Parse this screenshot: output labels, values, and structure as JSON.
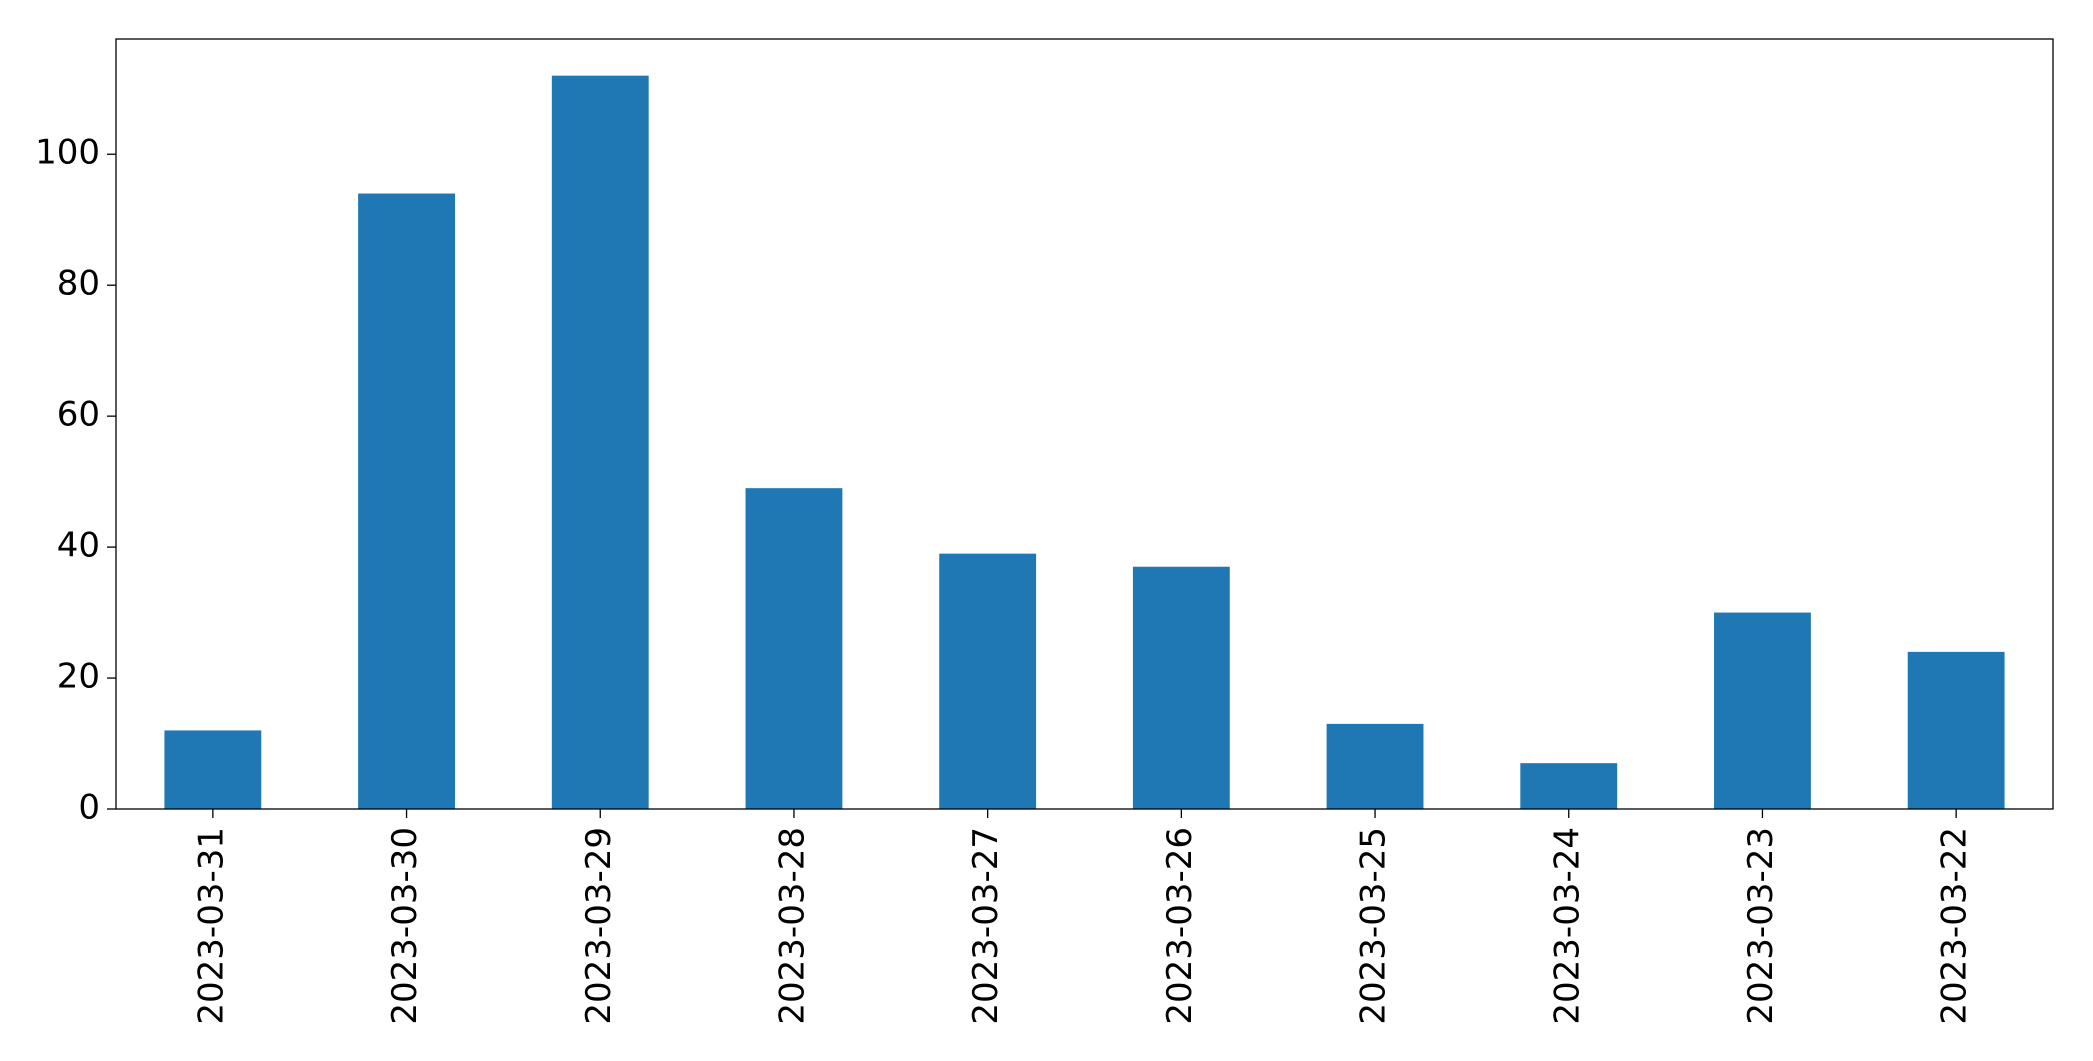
{
  "chart_data": {
    "type": "bar",
    "categories": [
      "2023-03-31",
      "2023-03-30",
      "2023-03-29",
      "2023-03-28",
      "2023-03-27",
      "2023-03-26",
      "2023-03-25",
      "2023-03-24",
      "2023-03-23",
      "2023-03-22"
    ],
    "values": [
      12,
      94,
      112,
      49,
      39,
      37,
      13,
      7,
      30,
      24
    ],
    "color": "#1f77b4",
    "ylim": [
      0,
      117.6
    ],
    "yticks": [
      0,
      20,
      40,
      60,
      80,
      100
    ],
    "grid": false
  }
}
